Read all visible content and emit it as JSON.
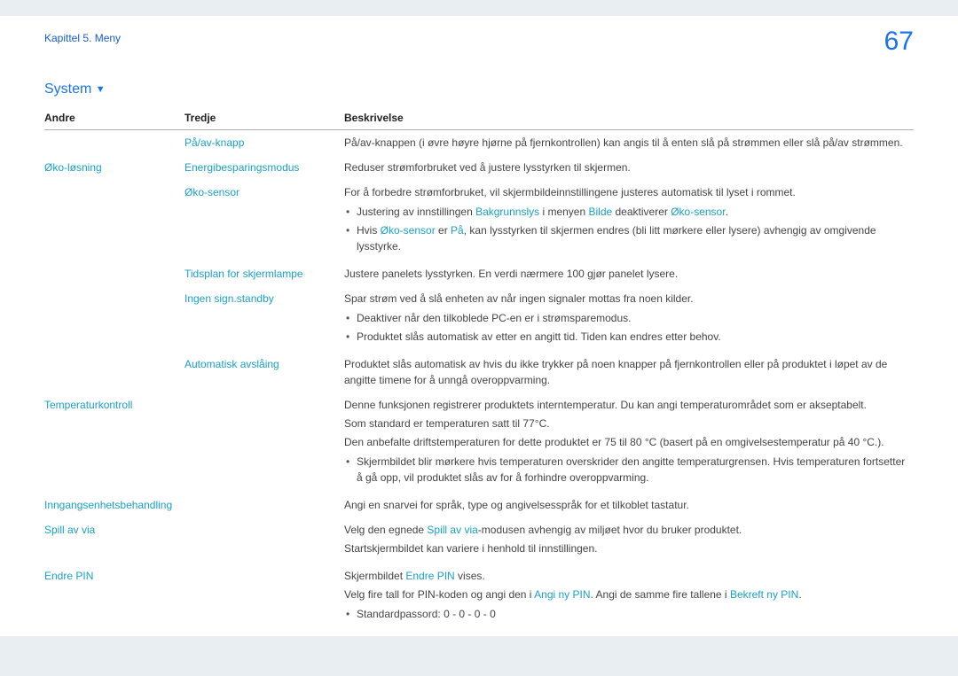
{
  "header": {
    "chapter": "Kapittel 5. Meny",
    "page_number": "67"
  },
  "section": {
    "title": "System",
    "triangle": "▼"
  },
  "table": {
    "headers": {
      "c1": "Andre",
      "c2": "Tredje",
      "c3": "Beskrivelse"
    },
    "rows": {
      "r1": {
        "c2": "På/av-knapp",
        "c3": "På/av-knappen (i øvre høyre hjørne på fjernkontrollen) kan angis til å enten slå på strømmen eller slå på/av strømmen."
      },
      "r2": {
        "c1": "Øko-løsning",
        "c2": "Energibesparingsmodus",
        "c3": "Reduser strømforbruket ved å justere lysstyrken til skjermen."
      },
      "r3": {
        "c2": "Øko-sensor",
        "c3_p1": "For å forbedre strømforbruket, vil skjermbildeinnstillingene justeres automatisk til lyset i rommet.",
        "c3_b1_pre": "Justering av innstillingen ",
        "c3_b1_h1": "Bakgrunnslys",
        "c3_b1_mid1": " i menyen ",
        "c3_b1_h2": "Bilde",
        "c3_b1_mid2": " deaktiverer ",
        "c3_b1_h3": "Øko-sensor",
        "c3_b1_post": ".",
        "c3_b2_pre": "Hvis ",
        "c3_b2_h1": "Øko-sensor",
        "c3_b2_mid1": " er ",
        "c3_b2_h2": "På",
        "c3_b2_post": ", kan lysstyrken til skjermen endres (bli litt mørkere eller lysere) avhengig av omgivende lysstyrke."
      },
      "r4": {
        "c2": "Tidsplan for skjermlampe",
        "c3": "Justere panelets lysstyrken. En verdi nærmere 100 gjør panelet lysere."
      },
      "r5": {
        "c2": "Ingen sign.standby",
        "c3_p1": "Spar strøm ved å slå enheten av når ingen signaler mottas fra noen kilder.",
        "c3_b1": "Deaktiver når den tilkoblede PC-en er i strømsparemodus.",
        "c3_b2": "Produktet slås automatisk av etter en angitt tid. Tiden kan endres etter behov."
      },
      "r6": {
        "c2": "Automatisk avslåing",
        "c3": "Produktet slås automatisk av hvis du ikke trykker på noen knapper på fjernkontrollen eller på produktet i løpet av de angitte timene for å unngå overoppvarming."
      },
      "r7": {
        "c1": "Temperaturkontroll",
        "c3_p1": "Denne funksjonen registrerer produktets interntemperatur. Du kan angi temperaturområdet som er akseptabelt.",
        "c3_p2": "Som standard er temperaturen satt til 77°C.",
        "c3_p3": "Den anbefalte driftstemperaturen for dette produktet er 75 til 80 °C (basert på en omgivelsestemperatur på 40 °C.).",
        "c3_b1": "Skjermbildet blir mørkere hvis temperaturen overskrider den angitte temperaturgrensen. Hvis temperaturen fortsetter å gå opp, vil produktet slås av for å forhindre overoppvarming."
      },
      "r8": {
        "c1": "Inngangsenhetsbehandling",
        "c3": "Angi en snarvei for språk, type og angivelsesspråk for et tilkoblet tastatur."
      },
      "r9": {
        "c1": "Spill av via",
        "c3_p1_pre": "Velg den egnede ",
        "c3_p1_h1": "Spill av via",
        "c3_p1_post": "-modusen avhengig av miljøet hvor du bruker produktet.",
        "c3_p2": "Startskjermbildet kan variere i henhold til innstillingen."
      },
      "r10": {
        "c1": "Endre PIN",
        "c3_p1_pre": "Skjermbildet ",
        "c3_p1_h1": "Endre PIN",
        "c3_p1_post": " vises.",
        "c3_p2_pre": "Velg fire tall for PIN-koden og angi den i ",
        "c3_p2_h1": "Angi ny PIN",
        "c3_p2_mid": ". Angi de samme fire tallene i ",
        "c3_p2_h2": "Bekreft ny PIN",
        "c3_p2_post": ".",
        "c3_b1": "Standardpassord: 0 - 0 - 0 - 0"
      }
    }
  }
}
